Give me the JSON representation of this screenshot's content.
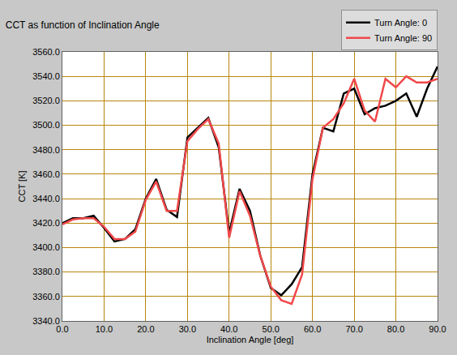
{
  "chart_data": {
    "type": "line",
    "title": "CCT as function of Inclination Angle",
    "x_label": "Inclination Angle [deg]",
    "y_label": "CCT [K]",
    "x": [
      0,
      2.5,
      5,
      7.5,
      10,
      12.5,
      15,
      17.5,
      20,
      22.5,
      25,
      27.5,
      30,
      32.5,
      35,
      37.5,
      40,
      42.5,
      45,
      47.5,
      50,
      52.5,
      55,
      57.5,
      60,
      62.5,
      65,
      67.5,
      70,
      72.5,
      75,
      77.5,
      80,
      82.5,
      85,
      87.5,
      90
    ],
    "series": [
      {
        "name": "Turn Angle: 0",
        "color": "#000000",
        "values": [
          3420,
          3424,
          3424,
          3426,
          3416,
          3405,
          3407,
          3415,
          3440,
          3456,
          3431,
          3425,
          3490,
          3498,
          3506,
          3482,
          3412,
          3448,
          3430,
          3393,
          3367,
          3361,
          3370,
          3384,
          3460,
          3498,
          3495,
          3526,
          3530,
          3509,
          3514,
          3516,
          3520,
          3526,
          3507,
          3530,
          3548
        ]
      },
      {
        "name": "Turn Angle: 90",
        "color": "#f0484a",
        "values": [
          3419,
          3423,
          3424,
          3424,
          3417,
          3407,
          3407,
          3413,
          3439,
          3454,
          3430,
          3430,
          3487,
          3497,
          3505,
          3485,
          3408,
          3446,
          3426,
          3393,
          3368,
          3357,
          3354,
          3378,
          3456,
          3498,
          3505,
          3518,
          3538,
          3512,
          3503,
          3538,
          3531,
          3540,
          3535,
          3535,
          3538
        ]
      }
    ],
    "xlim": [
      0,
      90
    ],
    "xticks": [
      {
        "value": 0,
        "label": "0.0"
      },
      {
        "value": 10,
        "label": "10.0"
      },
      {
        "value": 20,
        "label": "20.0"
      },
      {
        "value": 30,
        "label": "30.0"
      },
      {
        "value": 40,
        "label": "40.0"
      },
      {
        "value": 50,
        "label": "50.0"
      },
      {
        "value": 60,
        "label": "60.0"
      },
      {
        "value": 70,
        "label": "70.0"
      },
      {
        "value": 80,
        "label": "80.0"
      },
      {
        "value": 90,
        "label": "90.0"
      }
    ],
    "ylim": [
      3340,
      3560
    ],
    "yticks": [
      {
        "value": 3340,
        "label": "3340.0"
      },
      {
        "value": 3360,
        "label": "3360.0"
      },
      {
        "value": 3380,
        "label": "3380.0"
      },
      {
        "value": 3400,
        "label": "3400.0"
      },
      {
        "value": 3420,
        "label": "3420.0"
      },
      {
        "value": 3440,
        "label": "3440.0"
      },
      {
        "value": 3460,
        "label": "3460.0"
      },
      {
        "value": 3480,
        "label": "3480.0"
      },
      {
        "value": 3500,
        "label": "3500.0"
      },
      {
        "value": 3520,
        "label": "3520.0"
      },
      {
        "value": 3540,
        "label": "3540.0"
      },
      {
        "value": 3560,
        "label": "3560.0"
      }
    ],
    "grid": true,
    "legend": "top right"
  }
}
